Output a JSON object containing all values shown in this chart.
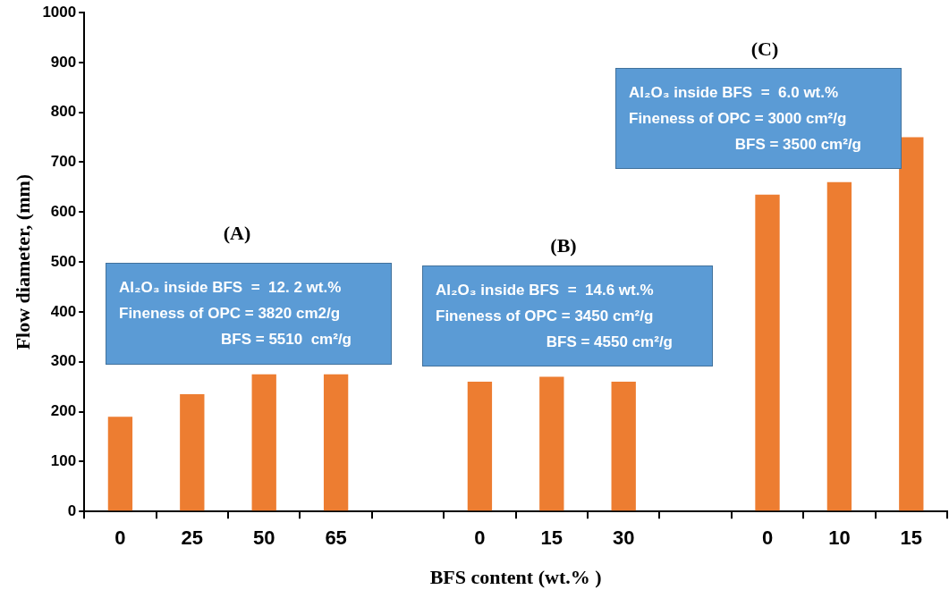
{
  "chart_data": {
    "type": "bar",
    "xlabel": "BFS content (wt.% )",
    "ylabel": "Flow diameter, (mm)",
    "categories": [
      "0",
      "25",
      "50",
      "65",
      null,
      "0",
      "15",
      "30",
      null,
      "0",
      "10",
      "15"
    ],
    "values": [
      190,
      235,
      275,
      275,
      null,
      260,
      270,
      260,
      null,
      635,
      660,
      750
    ],
    "color": "#ed7d31",
    "ylim": [
      0,
      1000
    ],
    "yticks": [
      0,
      100,
      200,
      300,
      400,
      500,
      600,
      700,
      800,
      900,
      1000
    ],
    "grid": false,
    "legend": false,
    "annotations": [
      "(A)",
      "(B)",
      "(C)",
      "Al₂O₃ inside BFS  =  12. 2 wt.%\nFineness of OPC = 3820 cm2/g\nBFS = 5510  cm²/g",
      "Al₂O₃ inside BFS  =  14.6 wt.%\nFineness of OPC = 3450 cm²/g\nBFS = 4550 cm²/g",
      "Al₂O₃ inside BFS  =  6.0 wt.%\nFineness of OPC = 3000 cm²/g\nBFS = 3500 cm²/g"
    ]
  }
}
